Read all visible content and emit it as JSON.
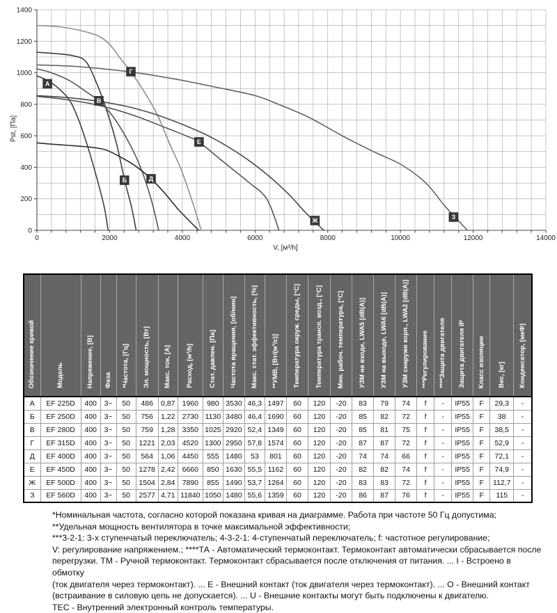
{
  "chart_data": {
    "type": "line",
    "title": "",
    "xlabel": "V, [м³/h]",
    "ylabel": "Pst, [Па]",
    "xlim": [
      0,
      14000
    ],
    "ylim": [
      0,
      1400
    ],
    "x_ticks": [
      0,
      2000,
      4000,
      6000,
      8000,
      10000,
      12000,
      14000
    ],
    "y_ticks": [
      0,
      200,
      400,
      600,
      800,
      1000,
      1200,
      1400
    ],
    "x_minor_step": 400,
    "y_minor_step": 100,
    "grid": true,
    "legend_position": "on-curve-badges",
    "curve_label_bg": "#383838",
    "series": [
      {
        "name": "А",
        "color": "#3c3c3c",
        "label_at": [
          290,
          930
        ],
        "points": [
          [
            0,
            980
          ],
          [
            300,
            950
          ],
          [
            600,
            900
          ],
          [
            900,
            825
          ],
          [
            1150,
            700
          ],
          [
            1400,
            530
          ],
          [
            1650,
            330
          ],
          [
            1850,
            150
          ],
          [
            1960,
            0
          ]
        ]
      },
      {
        "name": "Б",
        "color": "#3c3c3c",
        "label_at": [
          2410,
          318
        ],
        "points": [
          [
            0,
            1130
          ],
          [
            500,
            1122
          ],
          [
            1000,
            1108
          ],
          [
            1350,
            1070
          ],
          [
            1650,
            930
          ],
          [
            1950,
            740
          ],
          [
            2200,
            540
          ],
          [
            2410,
            320
          ],
          [
            2600,
            150
          ],
          [
            2730,
            0
          ]
        ]
      },
      {
        "name": "В",
        "color": "#555555",
        "label_at": [
          1704,
          822
        ],
        "points": [
          [
            0,
            1025
          ],
          [
            400,
            1000
          ],
          [
            900,
            950
          ],
          [
            1350,
            880
          ],
          [
            1700,
            822
          ],
          [
            2100,
            720
          ],
          [
            2500,
            570
          ],
          [
            2850,
            400
          ],
          [
            3150,
            190
          ],
          [
            3350,
            0
          ]
        ]
      },
      {
        "name": "Г",
        "color": "#8f8f8f",
        "label_at": [
          2585,
          1007
        ],
        "points": [
          [
            0,
            1300
          ],
          [
            600,
            1292
          ],
          [
            1200,
            1268
          ],
          [
            1700,
            1232
          ],
          [
            2000,
            1180
          ],
          [
            2300,
            1090
          ],
          [
            2585,
            1007
          ],
          [
            2950,
            880
          ],
          [
            3300,
            740
          ],
          [
            3650,
            550
          ],
          [
            3960,
            390
          ],
          [
            4250,
            200
          ],
          [
            4520,
            0
          ]
        ]
      },
      {
        "name": "Д",
        "color": "#2d2d2d",
        "label_at": [
          3140,
          327
        ],
        "points": [
          [
            0,
            555
          ],
          [
            500,
            545
          ],
          [
            1000,
            537
          ],
          [
            1500,
            527
          ],
          [
            1900,
            510
          ],
          [
            2300,
            465
          ],
          [
            2700,
            410
          ],
          [
            3140,
            327
          ],
          [
            3500,
            240
          ],
          [
            3900,
            130
          ],
          [
            4450,
            0
          ]
        ]
      },
      {
        "name": "Е",
        "color": "#555555",
        "label_at": [
          4460,
          561
        ],
        "points": [
          [
            0,
            850
          ],
          [
            700,
            833
          ],
          [
            1400,
            808
          ],
          [
            2100,
            770
          ],
          [
            2800,
            718
          ],
          [
            3500,
            655
          ],
          [
            4100,
            600
          ],
          [
            4460,
            560
          ],
          [
            5100,
            440
          ],
          [
            5800,
            310
          ],
          [
            6320,
            200
          ],
          [
            6660,
            0
          ]
        ]
      },
      {
        "name": "Ж",
        "color": "#4a4a4a",
        "label_at": [
          7650,
          62
        ],
        "points": [
          [
            0,
            855
          ],
          [
            800,
            843
          ],
          [
            1600,
            822
          ],
          [
            2400,
            790
          ],
          [
            3200,
            740
          ],
          [
            4000,
            672
          ],
          [
            4800,
            590
          ],
          [
            5600,
            480
          ],
          [
            6300,
            360
          ],
          [
            6900,
            235
          ],
          [
            7400,
            110
          ],
          [
            7890,
            0
          ]
        ]
      },
      {
        "name": "З",
        "color": "#636363",
        "label_at": [
          11460,
          84
        ],
        "points": [
          [
            0,
            1050
          ],
          [
            1200,
            1038
          ],
          [
            2585,
            1005
          ],
          [
            3800,
            960
          ],
          [
            5000,
            905
          ],
          [
            6000,
            855
          ],
          [
            6645,
            800
          ],
          [
            7500,
            715
          ],
          [
            8464,
            592
          ],
          [
            9300,
            495
          ],
          [
            10035,
            415
          ],
          [
            10700,
            300
          ],
          [
            11200,
            160
          ],
          [
            11600,
            60
          ],
          [
            11840,
            0
          ]
        ]
      }
    ]
  },
  "table": {
    "columns": [
      "Обозначение кривой",
      "Модель",
      "Напряжение, [В]",
      "Фаза",
      "*Частота, [Гц]",
      "Эл. мощность, [Вт]",
      "Макс. ток, [А]",
      "Расход, [м³/h]",
      "Стат. давлен. [Па]",
      "Частота вращения, [об/мин]",
      "Макс. стат. эффективность, [%]",
      "**УМВ, [Вт/(м³/с)]",
      "Температура окруж. среды, [°C]",
      "Температура трансп. возд., [°C]",
      "Мин. рабоч. температура, [°C]",
      "УЗМ на входе, LWA5 [dB(A)]",
      "УЗМ на выходе, LWA6 [dB(A)]",
      "УЗМ снаружи корп., LWA2 [dB(A)]",
      "***Регулирование",
      "****Защита двигателя",
      "Защита двигателя IP",
      "Класс изоляции",
      "Вес, [кг]",
      "Конденсатор, [мкФ]"
    ],
    "rows": [
      [
        "А",
        "EF 225D",
        "400",
        "3~",
        "50",
        "486",
        "0,87",
        "1960",
        "980",
        "3530",
        "46,3",
        "1497",
        "60",
        "120",
        "-20",
        "83",
        "79",
        "74",
        "f",
        "-",
        "IP55",
        "F",
        "29,3",
        "-"
      ],
      [
        "Б",
        "EF 250D",
        "400",
        "3~",
        "50",
        "756",
        "1,22",
        "2730",
        "1130",
        "3480",
        "46,4",
        "1690",
        "60",
        "120",
        "-20",
        "85",
        "82",
        "72",
        "f",
        "-",
        "IP55",
        "F",
        "38",
        "-"
      ],
      [
        "В",
        "EF 280D",
        "400",
        "3~",
        "50",
        "759",
        "1,28",
        "3350",
        "1025",
        "2920",
        "52,4",
        "1349",
        "60",
        "120",
        "-20",
        "85",
        "81",
        "75",
        "f",
        "-",
        "IP55",
        "F",
        "38,5",
        "-"
      ],
      [
        "Г",
        "EF 315D",
        "400",
        "3~",
        "50",
        "1221",
        "2,03",
        "4520",
        "1300",
        "2950",
        "57,8",
        "1574",
        "60",
        "120",
        "-20",
        "87",
        "87",
        "72",
        "f",
        "-",
        "IP55",
        "F",
        "52,9",
        "-"
      ],
      [
        "Д",
        "EF 400D",
        "400",
        "3~",
        "50",
        "564",
        "1,06",
        "4450",
        "555",
        "1480",
        "53",
        "801",
        "60",
        "120",
        "-20",
        "74",
        "74",
        "66",
        "f",
        "-",
        "IP55",
        "F",
        "72,1",
        "-"
      ],
      [
        "Е",
        "EF 450D",
        "400",
        "3~",
        "50",
        "1278",
        "2,42",
        "6660",
        "850",
        "1630",
        "55,5",
        "1162",
        "60",
        "120",
        "-20",
        "82",
        "82",
        "74",
        "f",
        "-",
        "IP55",
        "F",
        "74,9",
        "-"
      ],
      [
        "Ж",
        "EF 500D",
        "400",
        "3~",
        "50",
        "1504",
        "2,84",
        "7890",
        "855",
        "1490",
        "53,7",
        "1264",
        "60",
        "120",
        "-20",
        "83",
        "83",
        "72",
        "f",
        "-",
        "IP55",
        "F",
        "112,7",
        "-"
      ],
      [
        "З",
        "EF 560D",
        "400",
        "3~",
        "50",
        "2577",
        "4,71",
        "11840",
        "1050",
        "1480",
        "55,6",
        "1359",
        "60",
        "120",
        "-20",
        "86",
        "87",
        "76",
        "f",
        "-",
        "IP55",
        "F",
        "115",
        "-"
      ]
    ]
  },
  "page": {
    "footnote_lines": [
      "*Номинальная частота, согласно которой показана кривая на диаграмме. Работа при частоте 50 Гц допустима;",
      "**Удельная мощность вентилятора в точке максимальной эффективности;",
      "***3-2-1: 3-х ступенчатый переключатель; 4-3-2-1: 4-ступенчатый переключатель; f: частотное регулирование;",
      "V: регулирование напряжением.; ****ТА - Автоматический термоконтакт. Термоконтакт автоматически сбрасывается после",
      "перегрузки. ТМ - Ручной термоконтакт. Термоконтакт сбрасывается после отключения от питания. ... I - Встроено в обмотку",
      "(ток двигателя через термоконтакт). ... Е - Внешний контакт (ток двигателя через термоконтакт). ... О - Внешний контакт",
      "(встраивание в силовую цепь не допускается). ... U - Внешние контакты могут быть подключены к двигателю.",
      "ТЕС - Внутренний электронный контроль температуры."
    ]
  }
}
